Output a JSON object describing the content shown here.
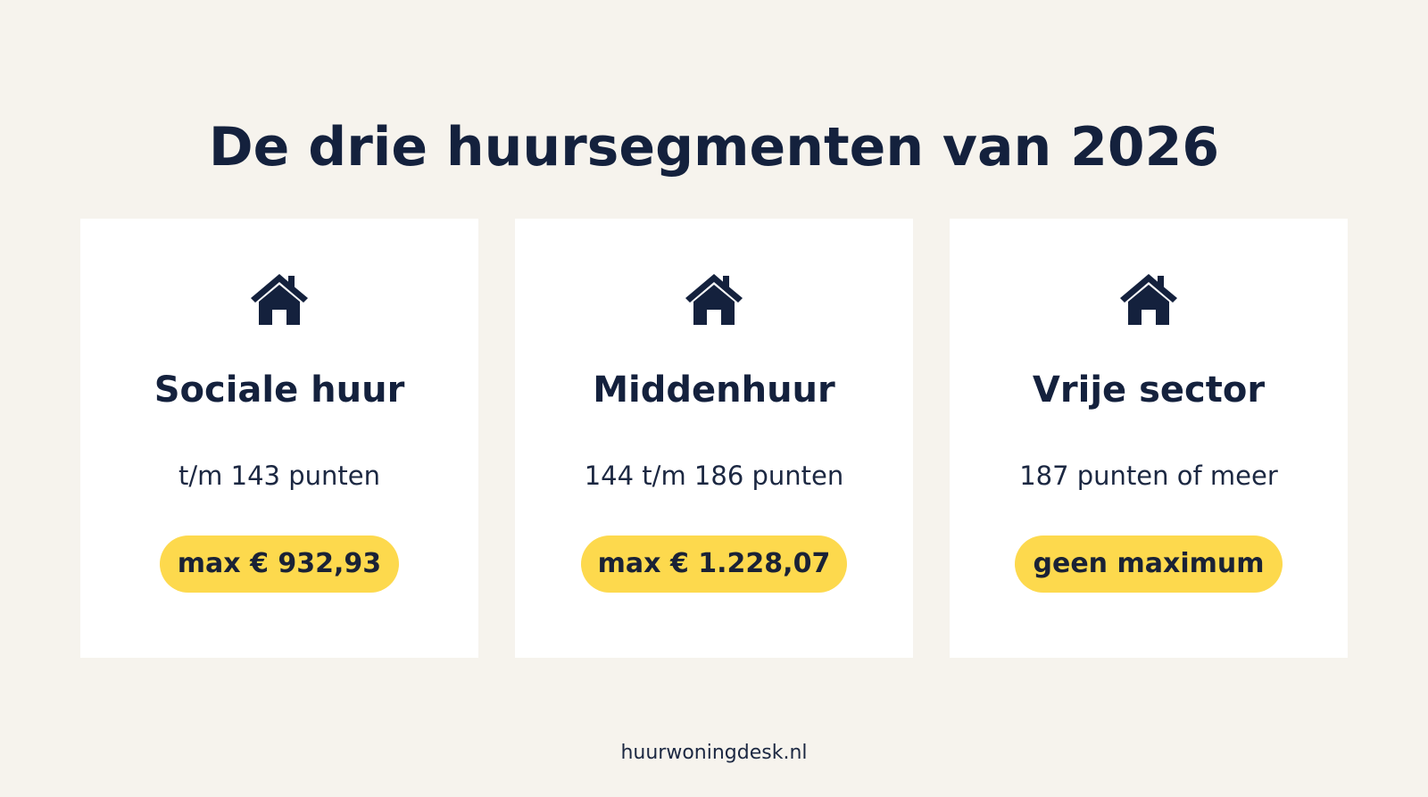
{
  "title": "De drie huursegmenten van 2026",
  "cards": [
    {
      "icon": "house-icon",
      "title": "Sociale huur",
      "range": "t/m 143 punten",
      "badge": "max € 932,93"
    },
    {
      "icon": "house-icon",
      "title": "Middenhuur",
      "range": "144 t/m 186 punten",
      "badge": "max € 1.228,07"
    },
    {
      "icon": "house-icon",
      "title": "Vrije sector",
      "range": "187 punten of meer",
      "badge": "geen maximum"
    }
  ],
  "footer": "huurwoningdesk.nl",
  "colors": {
    "background": "#f6f3ed",
    "card": "#ffffff",
    "text": "#14213d",
    "badge": "#fdd94d"
  }
}
